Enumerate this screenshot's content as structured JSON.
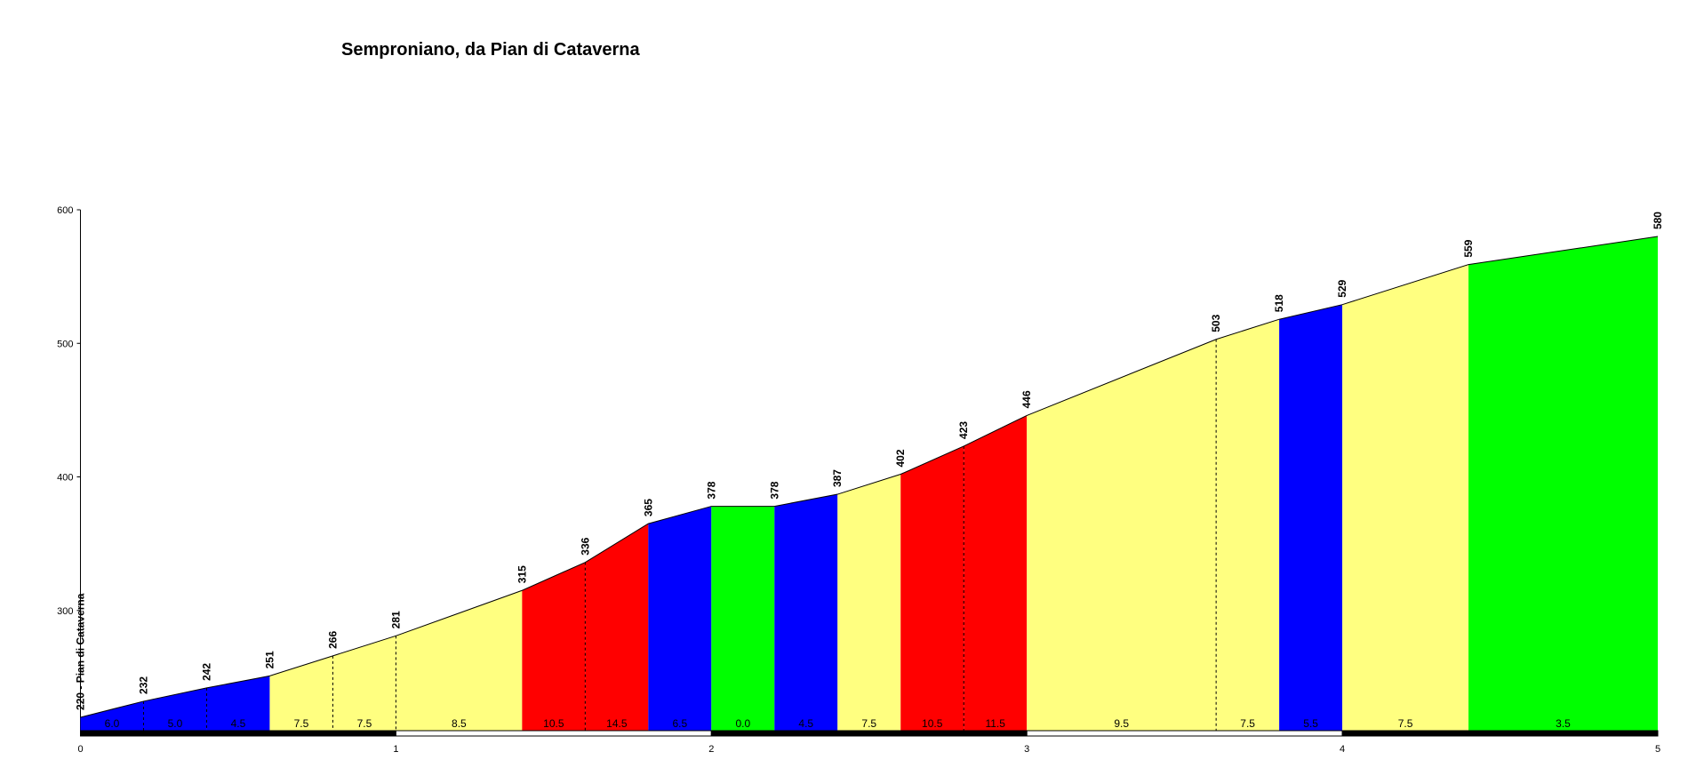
{
  "chart_data": {
    "type": "profile",
    "title": "Semproniano, da Pian di Cataverna",
    "x": [
      0,
      0.2,
      0.4,
      0.6,
      0.8,
      1.0,
      1.4,
      1.6,
      1.8,
      2.0,
      2.2,
      2.4,
      2.6,
      2.8,
      3.0,
      3.6,
      3.8,
      4.0,
      4.4,
      5.0
    ],
    "values": [
      220,
      232,
      242,
      251,
      266,
      281,
      315,
      336,
      365,
      378,
      378,
      387,
      402,
      423,
      446,
      503,
      518,
      529,
      559,
      580
    ],
    "value_labels": [
      "220 - Pian di Cataverna",
      "232",
      "242",
      "251",
      "266",
      "281",
      "315",
      "336",
      "365",
      "378",
      "378",
      "387",
      "402",
      "423",
      "446",
      "503",
      "518",
      "529",
      "559",
      "580"
    ],
    "gradients": {
      "values": [
        6,
        5,
        4.5,
        7.5,
        7.5,
        8.5,
        10.5,
        14.5,
        6.5,
        0,
        4.5,
        7.5,
        10.5,
        11.5,
        9.5,
        7.5,
        5.5,
        7.5,
        3.5
      ],
      "value_labels": [
        "6.0",
        "5.0",
        "4.5",
        "7.5",
        "7.5",
        "8.5",
        "10.5",
        "14.5",
        "6.5",
        "0.0",
        "4.5",
        "7.5",
        "10.5",
        "11.5",
        "9.5",
        "7.5",
        "5.5",
        "7.5",
        "3.5"
      ],
      "colors": [
        "#0000ff",
        "#0000ff",
        "#0000ff",
        "#ffff80",
        "#ffff80",
        "#ffff80",
        "#ff0000",
        "#ff0000",
        "#0000ff",
        "#00ff00",
        "#0000ff",
        "#ffff80",
        "#ff0000",
        "#ff0000",
        "#ffff80",
        "#ffff80",
        "#0000ff",
        "#ffff80",
        "#00ff00"
      ]
    },
    "xlim": [
      0,
      5
    ],
    "xticks": [
      0,
      1,
      2,
      3,
      4,
      5
    ],
    "ylim": [
      210,
      600
    ],
    "yticks": [
      300,
      400,
      500,
      600
    ]
  }
}
